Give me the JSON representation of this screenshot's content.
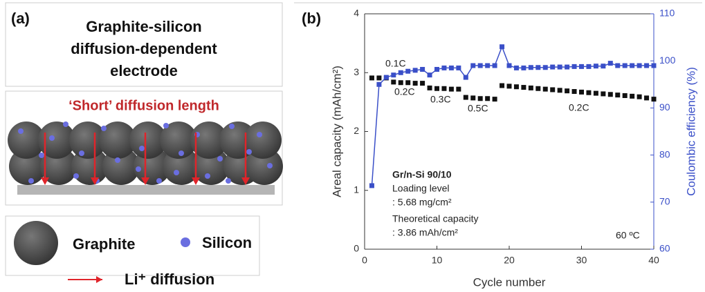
{
  "panel_a": {
    "label": "(a)",
    "title_lines": [
      "Graphite-silicon",
      "diffusion-dependent",
      "electrode"
    ],
    "diagram_caption": "‘Short’ diffusion length",
    "legend": {
      "graphite": "Graphite",
      "silicon": "Silicon",
      "li_diffusion": "Li⁺ diffusion"
    }
  },
  "chart_data": {
    "type": "line",
    "panel_label": "(b)",
    "x_label": "Cycle number",
    "y_label": "Areal capacity (mAh/cm²)",
    "y2_label": "Coulombic efficiency (%)",
    "x": [
      1,
      2,
      3,
      4,
      5,
      6,
      7,
      8,
      9,
      10,
      11,
      12,
      13,
      14,
      15,
      16,
      17,
      18,
      19,
      20,
      21,
      22,
      23,
      24,
      25,
      26,
      27,
      28,
      29,
      30,
      31,
      32,
      33,
      34,
      35,
      36,
      37,
      38,
      39,
      40
    ],
    "series": [
      {
        "color": "#111111",
        "line": false,
        "values": [
          2.91,
          2.91,
          2.91,
          2.84,
          2.83,
          2.83,
          2.82,
          2.82,
          2.74,
          2.73,
          2.73,
          2.72,
          2.72,
          2.58,
          2.57,
          2.56,
          2.56,
          2.55,
          2.78,
          2.77,
          2.76,
          2.75,
          2.74,
          2.73,
          2.72,
          2.71,
          2.7,
          2.69,
          2.68,
          2.67,
          2.66,
          2.65,
          2.64,
          2.63,
          2.62,
          2.61,
          2.6,
          2.59,
          2.57,
          2.55
        ]
      },
      {
        "color": "#3a4fc8",
        "line": true,
        "axis": "y2",
        "values": [
          73.5,
          95,
          96.5,
          97,
          97.5,
          97.8,
          98,
          98.2,
          97,
          98.2,
          98.5,
          98.5,
          98.5,
          96.5,
          99,
          99,
          99,
          99,
          103,
          99,
          98.5,
          98.5,
          98.6,
          98.6,
          98.6,
          98.7,
          98.7,
          98.7,
          98.8,
          98.8,
          98.8,
          98.9,
          98.9,
          99.5,
          99,
          99,
          99,
          99,
          99,
          99
        ]
      }
    ],
    "xlim": [
      0,
      40
    ],
    "xticks": [
      0,
      10,
      20,
      30,
      40
    ],
    "ylim": [
      0,
      4
    ],
    "yticks": [
      0,
      1,
      2,
      3,
      4
    ],
    "y2lim": [
      60,
      110
    ],
    "y2ticks": [
      60,
      70,
      80,
      90,
      100,
      110
    ],
    "annotations": [
      "0.1C",
      "0.2C",
      "0.3C",
      "0.5C",
      "0.2C",
      "Gr/n-Si  90/10",
      "Loading level",
      ": 5.68 mg/cm²",
      "Theoretical capacity",
      ": 3.86 mAh/cm²",
      "60 ºC"
    ]
  }
}
